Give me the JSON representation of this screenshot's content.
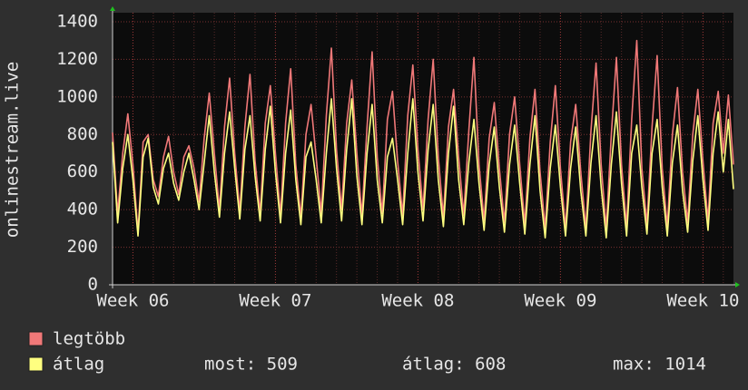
{
  "chart_data": {
    "type": "line",
    "ylabel": "onlinestream.live",
    "categories": [
      null,
      null,
      null,
      null,
      "Week 06",
      null,
      null,
      null,
      null,
      null,
      null,
      null,
      null,
      null,
      null,
      null,
      null,
      null,
      null,
      null,
      null,
      null,
      null,
      null,
      null,
      null,
      null,
      null,
      null,
      null,
      null,
      null,
      "Week 07",
      null,
      null,
      null,
      null,
      null,
      null,
      null,
      null,
      null,
      null,
      null,
      null,
      null,
      null,
      null,
      null,
      null,
      null,
      null,
      null,
      null,
      null,
      null,
      null,
      null,
      null,
      null,
      "Week 08",
      null,
      null,
      null,
      null,
      null,
      null,
      null,
      null,
      null,
      null,
      null,
      null,
      null,
      null,
      null,
      null,
      null,
      null,
      null,
      null,
      null,
      null,
      null,
      null,
      null,
      null,
      null,
      "Week 09",
      null,
      null,
      null,
      null,
      null,
      null,
      null,
      null,
      null,
      null,
      null,
      null,
      null,
      null,
      null,
      null,
      null,
      null,
      null,
      null,
      null,
      null,
      null,
      null,
      null,
      null,
      null,
      "Week 10",
      null,
      null,
      null,
      null,
      null,
      null
    ],
    "series": [
      {
        "name": "legtöbb",
        "color": "#f07878",
        "values": [
          810,
          380,
          700,
          910,
          640,
          280,
          760,
          800,
          560,
          470,
          680,
          790,
          600,
          480,
          680,
          740,
          620,
          440,
          780,
          1020,
          700,
          400,
          840,
          1100,
          700,
          390,
          840,
          1120,
          660,
          380,
          860,
          1060,
          700,
          370,
          860,
          1150,
          640,
          360,
          800,
          960,
          680,
          380,
          900,
          1260,
          720,
          400,
          860,
          1090,
          700,
          370,
          840,
          1240,
          680,
          380,
          880,
          1030,
          660,
          370,
          900,
          1170,
          720,
          400,
          880,
          1200,
          680,
          360,
          840,
          1040,
          680,
          370,
          820,
          1210,
          640,
          340,
          780,
          970,
          620,
          330,
          800,
          1000,
          640,
          320,
          780,
          1040,
          600,
          300,
          760,
          1060,
          620,
          300,
          760,
          960,
          600,
          300,
          820,
          1180,
          640,
          300,
          800,
          1210,
          640,
          310,
          880,
          1300,
          620,
          320,
          840,
          1220,
          620,
          310,
          800,
          1050,
          600,
          330,
          800,
          1040,
          660,
          340,
          860,
          1030,
          700,
          1010,
          640
        ]
      },
      {
        "name": "átlag",
        "color": "#ffff80",
        "values": [
          760,
          330,
          620,
          800,
          560,
          260,
          680,
          780,
          520,
          430,
          620,
          700,
          540,
          450,
          600,
          700,
          560,
          400,
          650,
          900,
          600,
          360,
          700,
          920,
          620,
          350,
          720,
          900,
          580,
          340,
          720,
          950,
          600,
          330,
          700,
          930,
          560,
          320,
          680,
          760,
          560,
          330,
          700,
          990,
          620,
          340,
          720,
          990,
          580,
          320,
          700,
          960,
          560,
          330,
          680,
          780,
          560,
          320,
          700,
          990,
          600,
          340,
          720,
          960,
          560,
          310,
          700,
          950,
          560,
          320,
          650,
          880,
          540,
          290,
          640,
          840,
          520,
          280,
          640,
          850,
          540,
          270,
          640,
          900,
          500,
          250,
          620,
          850,
          520,
          260,
          620,
          840,
          500,
          260,
          650,
          900,
          520,
          250,
          640,
          920,
          540,
          260,
          700,
          850,
          520,
          270,
          700,
          880,
          520,
          260,
          650,
          850,
          500,
          280,
          660,
          900,
          560,
          290,
          700,
          920,
          600,
          880,
          509
        ]
      }
    ],
    "ylim": [
      0,
      1400
    ],
    "yticks": [
      0,
      200,
      400,
      600,
      800,
      1000,
      1200,
      1400
    ],
    "grid": true,
    "stats": [
      "most: 509",
      "átlag: 608",
      "max: 1014"
    ]
  }
}
